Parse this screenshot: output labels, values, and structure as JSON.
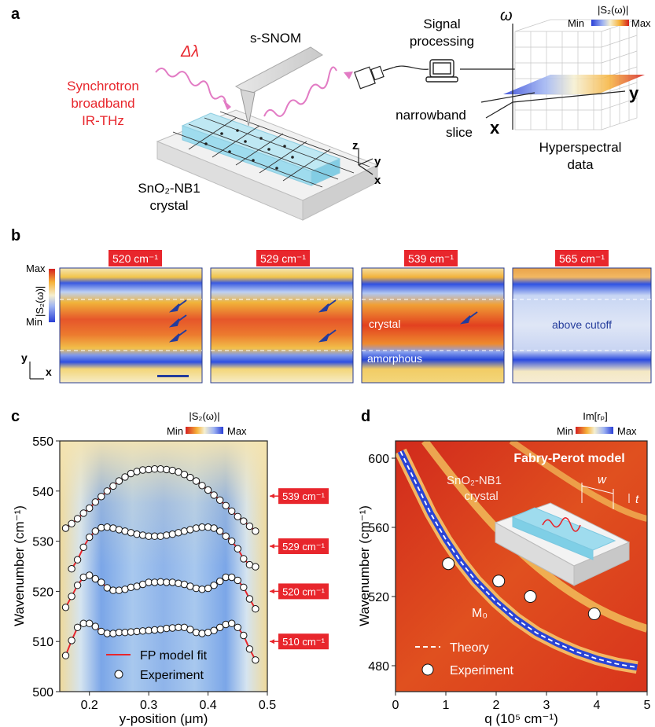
{
  "panel_a": {
    "letter": "a",
    "source_label": [
      "Synchrotron",
      "broadband",
      "IR-THz"
    ],
    "delta_lambda": "Δλ",
    "probe_label": "s-SNOM",
    "crystal_label": [
      "SnO₂-NB1",
      "crystal"
    ],
    "axes_small": {
      "z": "z",
      "y": "y",
      "x": "x"
    },
    "signal_label": [
      "Signal",
      "processing"
    ],
    "slice_label": [
      "narrowband",
      "slice"
    ],
    "cube_label": [
      "Hyperspectral",
      "data"
    ],
    "cube_axes": {
      "omega": "ω",
      "x": "x",
      "y": "y"
    },
    "colorbar_title": "|S₂(ω)|",
    "colorbar_min": "Min",
    "colorbar_max": "Max"
  },
  "panel_b": {
    "letter": "b",
    "colorbar_max": "Max",
    "colorbar_min": "Min",
    "colorbar_title": "|S₂(ω)|",
    "axis_y": "y",
    "axis_x": "x",
    "maps": [
      {
        "freq": "520 cm⁻¹",
        "annotations": []
      },
      {
        "freq": "529 cm⁻¹",
        "annotations": []
      },
      {
        "freq": "539 cm⁻¹",
        "annotations": [
          "crystal",
          "amorphous"
        ]
      },
      {
        "freq": "565 cm⁻¹",
        "annotations": [
          "above cutoff"
        ]
      }
    ]
  },
  "panel_c": {
    "letter": "c",
    "colorbar_title": "|S₂(ω)|",
    "colorbar_min": "Min",
    "colorbar_max": "Max",
    "legend_fit": "FP model fit",
    "legend_exp": "Experiment",
    "tags": [
      "539 cm⁻¹",
      "529 cm⁻¹",
      "520 cm⁻¹",
      "510 cm⁻¹"
    ],
    "chart_data": {
      "type": "scatter",
      "xlabel": "y-position (μm)",
      "ylabel": "Wavenumber (cm⁻¹)",
      "xlim": [
        0.15,
        0.5
      ],
      "ylim": [
        500,
        550
      ],
      "xticks": [
        "0.2",
        "0.3",
        "0.4",
        "0.5"
      ],
      "yticks": [
        "500",
        "510",
        "520",
        "530",
        "540",
        "550"
      ],
      "series": [
        {
          "name": "539 cm⁻¹",
          "x": [
            0.16,
            0.17,
            0.18,
            0.19,
            0.2,
            0.21,
            0.22,
            0.23,
            0.24,
            0.25,
            0.26,
            0.27,
            0.28,
            0.29,
            0.3,
            0.31,
            0.32,
            0.33,
            0.34,
            0.35,
            0.36,
            0.37,
            0.38,
            0.39,
            0.4,
            0.41,
            0.42,
            0.43,
            0.44,
            0.45,
            0.46,
            0.47,
            0.48
          ],
          "y": [
            532.6,
            533.5,
            534.5,
            535.6,
            536.6,
            537.8,
            538.9,
            540.0,
            541.0,
            542.0,
            542.8,
            543.5,
            543.9,
            544.2,
            544.3,
            544.4,
            544.4,
            544.3,
            544.1,
            543.8,
            543.3,
            542.7,
            542.0,
            541.1,
            540.2,
            539.2,
            538.2,
            537.1,
            536.0,
            534.9,
            534.0,
            533.0,
            532.0
          ]
        },
        {
          "name": "529 cm⁻¹",
          "x": [
            0.17,
            0.18,
            0.19,
            0.2,
            0.21,
            0.22,
            0.23,
            0.24,
            0.25,
            0.26,
            0.27,
            0.28,
            0.29,
            0.3,
            0.31,
            0.32,
            0.33,
            0.34,
            0.35,
            0.36,
            0.37,
            0.38,
            0.39,
            0.4,
            0.41,
            0.42,
            0.43,
            0.44,
            0.45,
            0.46,
            0.47,
            0.48
          ],
          "y": [
            524.5,
            526.3,
            528.8,
            530.8,
            532.0,
            532.7,
            532.8,
            532.6,
            532.3,
            532.0,
            531.7,
            531.4,
            531.2,
            531.0,
            531.0,
            531.0,
            531.2,
            531.4,
            531.7,
            532.0,
            532.3,
            532.6,
            532.8,
            532.8,
            532.6,
            532.0,
            531.0,
            530.0,
            528.5,
            526.5,
            525.3,
            524.9
          ]
        },
        {
          "name": "520 cm⁻¹",
          "x": [
            0.16,
            0.17,
            0.18,
            0.19,
            0.2,
            0.21,
            0.22,
            0.23,
            0.24,
            0.25,
            0.26,
            0.27,
            0.28,
            0.29,
            0.3,
            0.31,
            0.32,
            0.33,
            0.34,
            0.35,
            0.36,
            0.37,
            0.38,
            0.39,
            0.4,
            0.41,
            0.42,
            0.43,
            0.44,
            0.45,
            0.46,
            0.47,
            0.48
          ],
          "y": [
            516.8,
            519.0,
            521.2,
            522.8,
            523.2,
            522.5,
            521.8,
            520.7,
            520.2,
            520.2,
            520.4,
            520.8,
            521.0,
            521.4,
            521.8,
            521.8,
            521.9,
            521.8,
            521.8,
            521.6,
            521.4,
            521.0,
            520.6,
            520.4,
            520.6,
            521.2,
            522.0,
            522.8,
            522.8,
            522.2,
            520.8,
            518.5,
            516.5
          ]
        },
        {
          "name": "510 cm⁻¹",
          "x": [
            0.16,
            0.17,
            0.18,
            0.19,
            0.2,
            0.21,
            0.22,
            0.23,
            0.24,
            0.25,
            0.26,
            0.27,
            0.28,
            0.29,
            0.3,
            0.31,
            0.32,
            0.33,
            0.34,
            0.35,
            0.36,
            0.37,
            0.38,
            0.39,
            0.4,
            0.41,
            0.42,
            0.43,
            0.44,
            0.45,
            0.46,
            0.47,
            0.48
          ],
          "y": [
            507.2,
            510.2,
            512.8,
            513.6,
            513.6,
            513.0,
            512.0,
            511.6,
            511.6,
            511.8,
            511.8,
            511.9,
            512.0,
            512.1,
            512.2,
            512.3,
            512.4,
            512.6,
            512.7,
            512.8,
            512.8,
            512.4,
            511.8,
            511.6,
            511.8,
            512.2,
            512.8,
            513.4,
            513.6,
            512.8,
            511.2,
            508.5,
            506.3
          ]
        }
      ]
    }
  },
  "panel_d": {
    "letter": "d",
    "colorbar_title": "Im[rₚ]",
    "colorbar_min": "Min",
    "colorbar_max": "Max",
    "model_title": "Fabry-Perot model",
    "crystal_label": [
      "SnO₂-NB1",
      "crystal"
    ],
    "mode_label": "M₀",
    "inset_w": "w",
    "inset_t": "t",
    "legend_theory": "Theory",
    "legend_exp": "Experiment",
    "chart_data": {
      "type": "scatter",
      "xlabel": "q (10⁵ cm⁻¹)",
      "ylabel": "Wavenumber (cm⁻¹)",
      "xlim": [
        0,
        5
      ],
      "ylim": [
        465,
        610
      ],
      "xticks": [
        "0",
        "1",
        "2",
        "3",
        "4",
        "5"
      ],
      "yticks": [
        "480",
        "520",
        "560",
        "600"
      ],
      "series": [
        {
          "name": "Experiment",
          "x": [
            1.05,
            2.05,
            2.68,
            3.95
          ],
          "y": [
            539,
            529,
            520,
            510
          ]
        },
        {
          "name": "Theory",
          "x": [
            0.1,
            0.3,
            0.5,
            0.7,
            1.0,
            1.3,
            1.6,
            2.0,
            2.4,
            2.8,
            3.2,
            3.6,
            4.0,
            4.4,
            4.8
          ],
          "y": [
            604,
            592,
            580,
            568,
            553,
            540,
            529,
            517,
            507,
            499,
            493,
            488,
            484,
            481,
            479
          ]
        }
      ]
    }
  }
}
